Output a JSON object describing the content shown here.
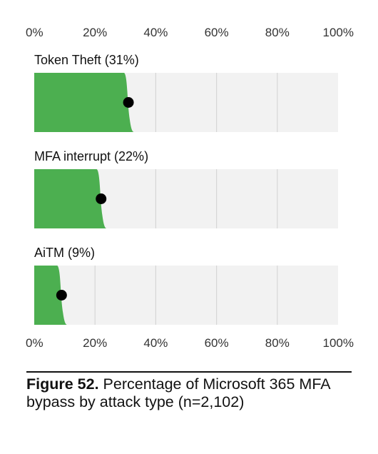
{
  "chart_data": {
    "type": "bar",
    "categories": [
      "Token Theft (31%)",
      "MFA interrupt (22%)",
      "AiTM (9%)"
    ],
    "values": [
      31,
      22,
      9
    ],
    "xlim": [
      0,
      100
    ],
    "xticks": [
      "0%",
      "20%",
      "40%",
      "60%",
      "80%",
      "100%"
    ],
    "xtick_values": [
      0,
      20,
      40,
      60,
      80,
      100
    ],
    "grid": true,
    "colors": {
      "bar": "#4caf50",
      "track": "#f2f2f2",
      "grid": "#d6d6d6",
      "dot": "#000000"
    }
  },
  "caption": {
    "label": "Figure 52.",
    "text": "Percentage of Microsoft 365 MFA bypass by attack type (n=2,102)"
  }
}
